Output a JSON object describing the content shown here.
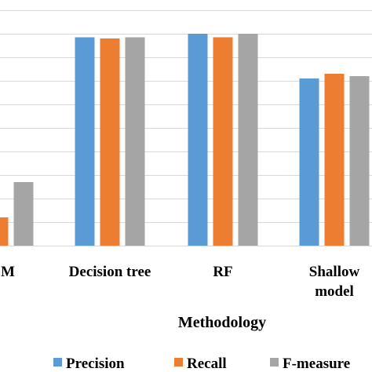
{
  "chart_data": {
    "type": "bar",
    "xlabel": "Methodology",
    "ylabel": "",
    "title": "",
    "categories": [
      "M",
      "Decision tree",
      "RF",
      "Shallow model"
    ],
    "category_lines": [
      [
        "M"
      ],
      [
        "Decision tree"
      ],
      [
        "RF"
      ],
      [
        "Shallow",
        "model"
      ]
    ],
    "series": [
      {
        "name": "Precision",
        "color": "#5b9bd5",
        "values": [
          null,
          0.885,
          0.9,
          0.71
        ]
      },
      {
        "name": "Recall",
        "color": "#ed7d31",
        "values": [
          0.12,
          0.88,
          0.885,
          0.73
        ]
      },
      {
        "name": "F-measure",
        "color": "#a5a5a5",
        "values": [
          0.27,
          0.885,
          0.9,
          0.72
        ]
      }
    ],
    "ylim": [
      0,
      1.0
    ],
    "y_gridline_step": 0.1,
    "grid": true,
    "legend": "bottom"
  }
}
